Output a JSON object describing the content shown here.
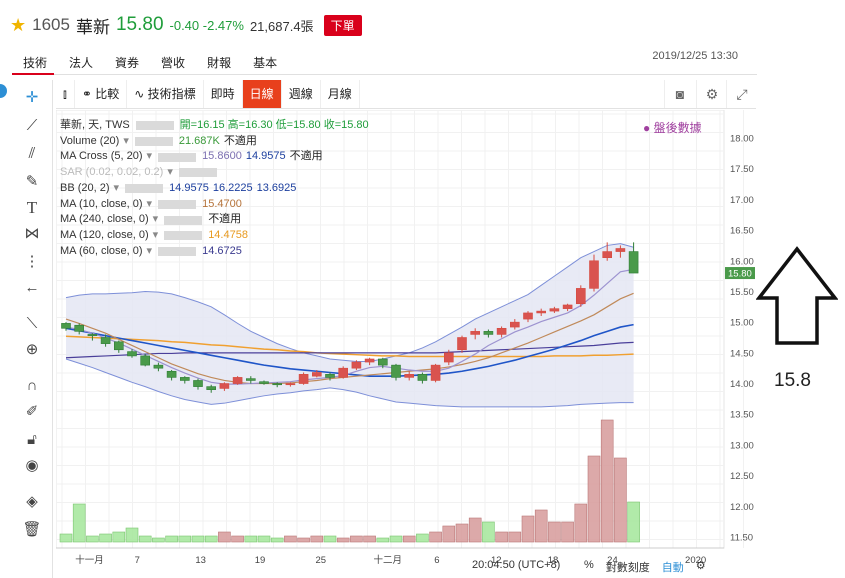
{
  "header": {
    "code": "1605",
    "name": "華新",
    "price": "15.80",
    "change": "-0.40 -2.47%",
    "volume": "21,687.4張",
    "order_button": "下單"
  },
  "tabs": [
    "技術",
    "法人",
    "資券",
    "營收",
    "財報",
    "基本"
  ],
  "datetime": "2019/12/25 13:30",
  "toolbar": {
    "compare": "比較",
    "indicators": "技術指標",
    "intraday": "即時",
    "daily": "日線",
    "weekly": "週線",
    "monthly": "月線"
  },
  "legend": {
    "title": "華新, 天, TWS",
    "ohlc": "開=16.15 高=16.30 低=15.80 收=15.80",
    "post_market": "盤後數據",
    "rows": [
      {
        "label": "Volume (20)",
        "values": [
          "21.687K",
          "不適用"
        ],
        "colors": [
          "#3a9a3a",
          "#222222"
        ]
      },
      {
        "label": "MA Cross (5, 20)",
        "values": [
          "15.8600",
          "14.9575",
          "不適用"
        ],
        "colors": [
          "#7b6fb0",
          "#1c3f9e",
          "#222222"
        ]
      },
      {
        "label": "SAR (0.02, 0.02, 0.2)",
        "values": [],
        "colors": []
      },
      {
        "label": "BB (20, 2)",
        "values": [
          "14.9575",
          "16.2225",
          "13.6925"
        ],
        "colors": [
          "#1c3f9e",
          "#1c3f9e",
          "#1c3f9e"
        ]
      },
      {
        "label": "MA (10, close, 0)",
        "values": [
          "15.4700"
        ],
        "colors": [
          "#b5733a"
        ]
      },
      {
        "label": "MA (240, close, 0)",
        "values": [
          "不適用"
        ],
        "colors": [
          "#222222"
        ]
      },
      {
        "label": "MA (120, close, 0)",
        "values": [
          "14.4758"
        ],
        "colors": [
          "#e89a20"
        ]
      },
      {
        "label": "MA (60, close, 0)",
        "values": [
          "14.6725"
        ],
        "colors": [
          "#3b3b8f"
        ]
      }
    ]
  },
  "chart_data": {
    "type": "candlestick",
    "y_ticks": [
      "18.00",
      "17.50",
      "17.00",
      "16.50",
      "16.00",
      "15.50",
      "15.00",
      "14.50",
      "14.00",
      "13.50",
      "13.00",
      "12.50",
      "12.00",
      "11.50"
    ],
    "last_price_label": "15.80",
    "x_ticks": [
      "十一月",
      "7",
      "13",
      "19",
      "25",
      "十二月",
      "6",
      "12",
      "18",
      "24",
      "2020"
    ],
    "candles": [
      [
        14.98,
        14.9,
        14.86,
        15.0
      ],
      [
        14.95,
        14.85,
        14.8,
        14.98
      ],
      [
        14.8,
        14.78,
        14.7,
        14.82
      ],
      [
        14.75,
        14.65,
        14.6,
        14.8
      ],
      [
        14.68,
        14.55,
        14.5,
        14.7
      ],
      [
        14.52,
        14.45,
        14.42,
        14.56
      ],
      [
        14.45,
        14.3,
        14.28,
        14.48
      ],
      [
        14.3,
        14.25,
        14.2,
        14.34
      ],
      [
        14.2,
        14.1,
        14.05,
        14.22
      ],
      [
        14.1,
        14.05,
        14.0,
        14.12
      ],
      [
        14.05,
        13.95,
        13.9,
        14.08
      ],
      [
        13.95,
        13.9,
        13.85,
        13.98
      ],
      [
        13.92,
        14.0,
        13.88,
        14.02
      ],
      [
        14.0,
        14.1,
        13.98,
        14.12
      ],
      [
        14.08,
        14.05,
        14.0,
        14.12
      ],
      [
        14.03,
        14.0,
        13.98,
        14.05
      ],
      [
        14.0,
        13.98,
        13.94,
        14.02
      ],
      [
        13.98,
        14.0,
        13.95,
        14.02
      ],
      [
        14.0,
        14.15,
        13.98,
        14.18
      ],
      [
        14.12,
        14.18,
        14.1,
        14.22
      ],
      [
        14.15,
        14.1,
        14.05,
        14.18
      ],
      [
        14.1,
        14.25,
        14.08,
        14.28
      ],
      [
        14.25,
        14.35,
        14.22,
        14.38
      ],
      [
        14.35,
        14.4,
        14.3,
        14.42
      ],
      [
        14.4,
        14.3,
        14.25,
        14.42
      ],
      [
        14.3,
        14.1,
        14.05,
        14.32
      ],
      [
        14.1,
        14.15,
        14.05,
        14.2
      ],
      [
        14.15,
        14.05,
        14.0,
        14.18
      ],
      [
        14.05,
        14.3,
        14.02,
        14.32
      ],
      [
        14.35,
        14.5,
        14.3,
        14.55
      ],
      [
        14.55,
        14.75,
        14.5,
        14.78
      ],
      [
        14.8,
        14.85,
        14.72,
        14.9
      ],
      [
        14.85,
        14.8,
        14.75,
        14.88
      ],
      [
        14.8,
        14.9,
        14.75,
        14.93
      ],
      [
        14.92,
        15.0,
        14.88,
        15.05
      ],
      [
        15.05,
        15.15,
        15.0,
        15.18
      ],
      [
        15.15,
        15.18,
        15.1,
        15.22
      ],
      [
        15.18,
        15.22,
        15.15,
        15.25
      ],
      [
        15.22,
        15.28,
        15.18,
        15.3
      ],
      [
        15.3,
        15.55,
        15.25,
        15.6
      ],
      [
        15.55,
        16.0,
        15.5,
        16.1
      ],
      [
        16.05,
        16.15,
        16.0,
        16.3
      ],
      [
        16.15,
        16.2,
        16.05,
        16.25
      ],
      [
        16.15,
        15.8,
        15.8,
        16.3
      ]
    ],
    "volumes": [
      0.4,
      1.9,
      0.3,
      0.4,
      0.5,
      0.7,
      0.3,
      0.2,
      0.3,
      0.3,
      0.3,
      0.3,
      0.5,
      0.3,
      0.3,
      0.3,
      0.2,
      0.3,
      0.2,
      0.3,
      0.3,
      0.2,
      0.3,
      0.3,
      0.2,
      0.3,
      0.3,
      0.4,
      0.5,
      0.8,
      0.9,
      1.2,
      1.0,
      0.5,
      0.5,
      1.3,
      1.6,
      1.0,
      1.0,
      1.9,
      4.3,
      6.1,
      4.2,
      2.0
    ],
    "ma5": [
      14.92,
      14.88,
      14.82,
      14.74,
      14.66,
      14.56,
      14.46,
      14.36,
      14.26,
      14.17,
      14.09,
      14.02,
      13.99,
      13.99,
      14.0,
      14.01,
      14.02,
      14.03,
      14.06,
      14.08,
      14.1,
      14.13,
      14.2,
      14.26,
      14.28,
      14.25,
      14.22,
      14.2,
      14.2,
      14.25,
      14.36,
      14.48,
      14.62,
      14.73,
      14.84,
      14.92,
      15.01,
      15.08,
      15.15,
      15.27,
      15.44,
      15.63,
      15.82,
      15.86
    ],
    "ma20": [
      14.9,
      14.86,
      14.82,
      14.78,
      14.74,
      14.7,
      14.66,
      14.62,
      14.58,
      14.54,
      14.5,
      14.46,
      14.42,
      14.38,
      14.34,
      14.3,
      14.27,
      14.24,
      14.22,
      14.2,
      14.18,
      14.16,
      14.14,
      14.12,
      14.12,
      14.12,
      14.13,
      14.14,
      14.15,
      14.17,
      14.2,
      14.24,
      14.28,
      14.33,
      14.38,
      14.44,
      14.5,
      14.56,
      14.63,
      14.7,
      14.78,
      14.85,
      14.92,
      14.96
    ],
    "ma10": [
      15.05,
      14.98,
      14.9,
      14.82,
      14.72,
      14.62,
      14.52,
      14.42,
      14.32,
      14.24,
      14.16,
      14.1,
      14.05,
      14.02,
      14.0,
      14.0,
      14.0,
      14.01,
      14.03,
      14.05,
      14.08,
      14.1,
      14.12,
      14.14,
      14.16,
      14.18,
      14.2,
      14.22,
      14.24,
      14.27,
      14.31,
      14.36,
      14.42,
      14.5,
      14.58,
      14.66,
      14.75,
      14.84,
      14.93,
      15.02,
      15.12,
      15.25,
      15.38,
      15.47
    ],
    "ma60": [
      14.42,
      14.43,
      14.44,
      14.45,
      14.46,
      14.47,
      14.48,
      14.49,
      14.49,
      14.5,
      14.5,
      14.5,
      14.5,
      14.5,
      14.5,
      14.5,
      14.5,
      14.5,
      14.5,
      14.5,
      14.5,
      14.5,
      14.5,
      14.5,
      14.5,
      14.5,
      14.5,
      14.5,
      14.5,
      14.51,
      14.52,
      14.53,
      14.54,
      14.55,
      14.56,
      14.57,
      14.58,
      14.59,
      14.6,
      14.61,
      14.62,
      14.64,
      14.66,
      14.67
    ],
    "ma120": [
      14.77,
      14.76,
      14.75,
      14.74,
      14.73,
      14.72,
      14.71,
      14.7,
      14.68,
      14.67,
      14.65,
      14.63,
      14.62,
      14.6,
      14.58,
      14.56,
      14.55,
      14.53,
      14.52,
      14.5,
      14.49,
      14.48,
      14.47,
      14.46,
      14.45,
      14.45,
      14.44,
      14.44,
      14.44,
      14.44,
      14.44,
      14.44,
      14.44,
      14.44,
      14.44,
      14.44,
      14.44,
      14.45,
      14.45,
      14.45,
      14.46,
      14.46,
      14.47,
      14.48
    ],
    "bb_upper": [
      15.4,
      15.44,
      15.46,
      15.46,
      15.47,
      15.48,
      15.5,
      15.49,
      15.46,
      15.4,
      15.33,
      15.25,
      15.12,
      14.98,
      14.85,
      14.75,
      14.65,
      14.57,
      14.5,
      14.45,
      14.4,
      14.38,
      14.36,
      14.36,
      14.4,
      14.45,
      14.5,
      14.58,
      14.68,
      14.8,
      14.92,
      15.05,
      15.15,
      15.25,
      15.35,
      15.45,
      15.6,
      15.75,
      15.9,
      16.05,
      16.15,
      16.25,
      16.28,
      16.22
    ],
    "bb_lower": [
      14.4,
      14.33,
      14.26,
      14.18,
      14.1,
      14.02,
      13.95,
      13.87,
      13.8,
      13.74,
      13.7,
      13.66,
      13.68,
      13.72,
      13.76,
      13.8,
      13.83,
      13.85,
      13.88,
      13.9,
      13.93,
      13.9,
      13.86,
      13.8,
      13.75,
      13.7,
      13.68,
      13.66,
      13.64,
      13.63,
      13.62,
      13.62,
      13.62,
      13.62,
      13.62,
      13.62,
      13.62,
      13.63,
      13.64,
      13.66,
      13.67,
      13.68,
      13.69,
      13.69
    ]
  },
  "bottom": {
    "time": "20:04:50 (UTC+8)",
    "percent": "%",
    "log_scale": "對數刻度",
    "auto": "自動"
  },
  "annotation": "15.8",
  "colors": {
    "up": "#d9534f",
    "down": "#3a8a3a",
    "accent": "#e8401c"
  }
}
